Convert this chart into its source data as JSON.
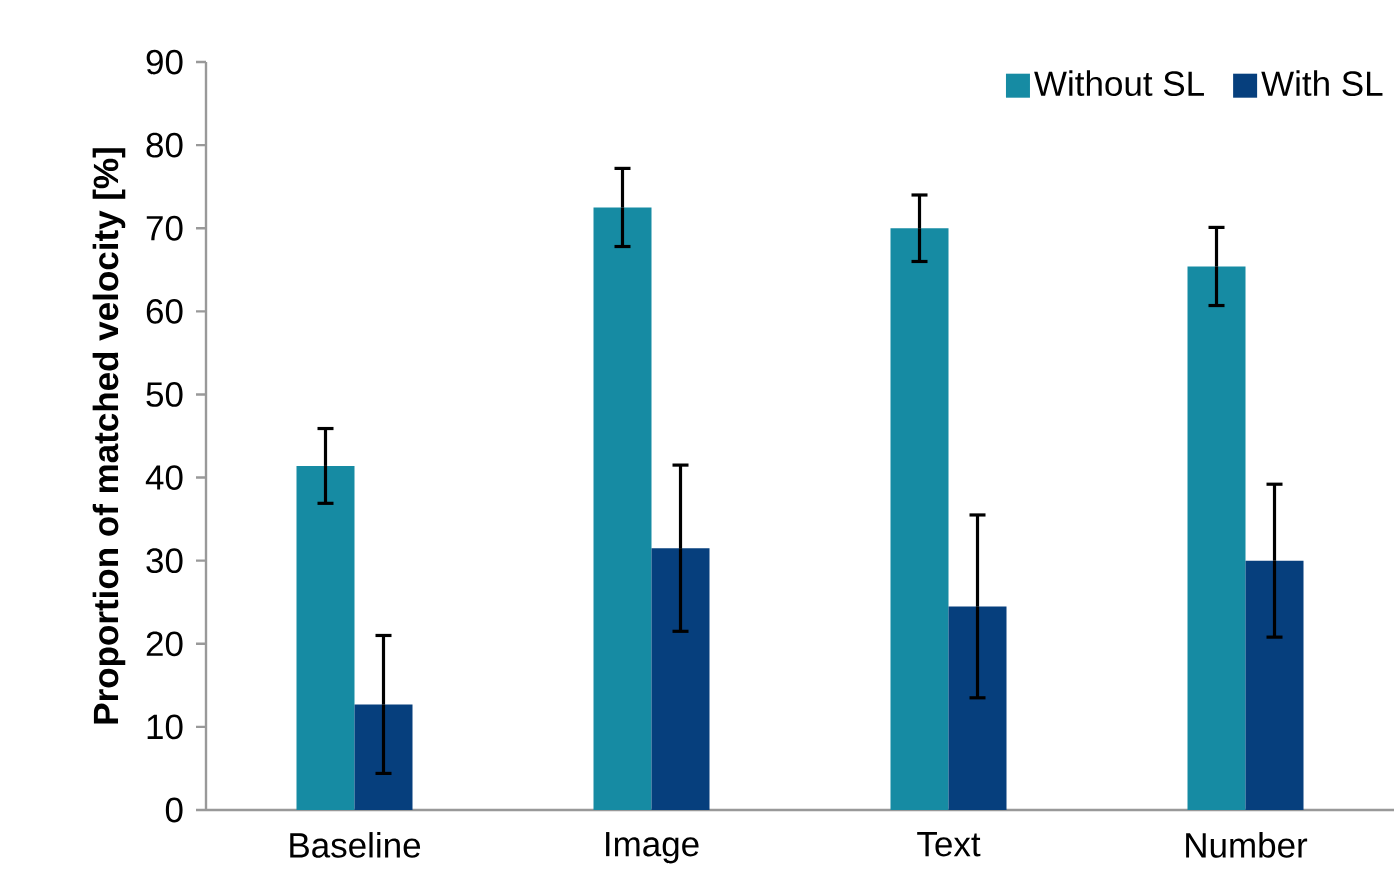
{
  "chart_data": {
    "type": "bar",
    "ylabel": "Proportion of matched velocity [%]",
    "categories": [
      "Baseline",
      "Image",
      "Text",
      "Number"
    ],
    "series": [
      {
        "name": "Without SL",
        "color": "#168ba3",
        "values": [
          41.4,
          72.5,
          70.0,
          65.4
        ],
        "errors": [
          4.5,
          4.7,
          4.0,
          4.7
        ]
      },
      {
        "name": "With SL",
        "color": "#063f7d",
        "values": [
          12.7,
          31.5,
          24.5,
          30.0
        ],
        "errors": [
          8.3,
          10.0,
          11.0,
          9.2
        ]
      }
    ],
    "ylim": [
      0,
      90
    ],
    "yticks": [
      0,
      10,
      20,
      30,
      40,
      50,
      60,
      70,
      80,
      90
    ],
    "grid": false,
    "legend": "top right"
  }
}
